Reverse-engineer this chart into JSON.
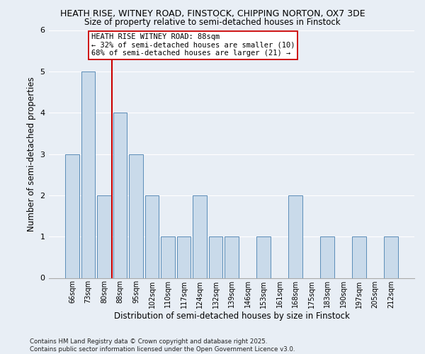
{
  "title_line1": "HEATH RISE, WITNEY ROAD, FINSTOCK, CHIPPING NORTON, OX7 3DE",
  "title_line2": "Size of property relative to semi-detached houses in Finstock",
  "xlabel": "Distribution of semi-detached houses by size in Finstock",
  "ylabel": "Number of semi-detached properties",
  "categories": [
    "66sqm",
    "73sqm",
    "80sqm",
    "88sqm",
    "95sqm",
    "102sqm",
    "110sqm",
    "117sqm",
    "124sqm",
    "132sqm",
    "139sqm",
    "146sqm",
    "153sqm",
    "161sqm",
    "168sqm",
    "175sqm",
    "183sqm",
    "190sqm",
    "197sqm",
    "205sqm",
    "212sqm"
  ],
  "values": [
    3,
    5,
    2,
    4,
    3,
    2,
    1,
    1,
    2,
    1,
    1,
    0,
    1,
    0,
    2,
    0,
    1,
    0,
    1,
    0,
    1
  ],
  "bar_color": "#c9daea",
  "bar_edge_color": "#5b8db8",
  "highlight_index": 3,
  "highlight_line_color": "#cc0000",
  "annotation_text": "HEATH RISE WITNEY ROAD: 88sqm\n← 32% of semi-detached houses are smaller (10)\n68% of semi-detached houses are larger (21) →",
  "annotation_box_color": "#ffffff",
  "annotation_box_edge": "#cc0000",
  "ylim": [
    0,
    6
  ],
  "yticks": [
    0,
    1,
    2,
    3,
    4,
    5,
    6
  ],
  "footer_line1": "Contains HM Land Registry data © Crown copyright and database right 2025.",
  "footer_line2": "Contains public sector information licensed under the Open Government Licence v3.0.",
  "bg_color": "#e8eef5",
  "plot_bg_color": "#e8eef5",
  "grid_color": "#ffffff",
  "spine_color": "#aaaaaa"
}
